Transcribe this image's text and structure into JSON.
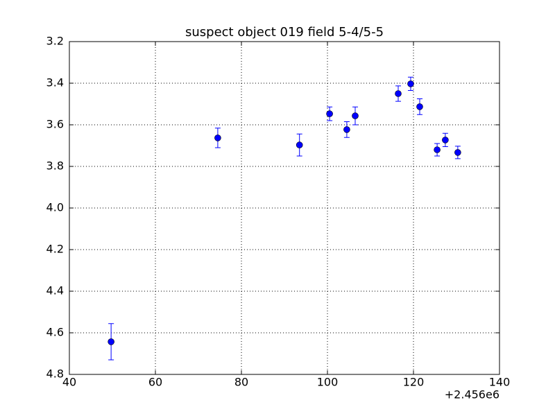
{
  "chart_data": {
    "type": "scatter",
    "title": "suspect object 019 field 5-4/5-5",
    "x_offset_label": "+2.456e6",
    "xlim": [
      40,
      140
    ],
    "xticks": [
      40,
      60,
      80,
      100,
      120,
      140
    ],
    "ylim": [
      4.8,
      3.2
    ],
    "yticks": [
      4.8,
      4.6,
      4.4,
      4.2,
      {
        "value": 4,
        "label": "4.0"
      },
      3.8,
      3.6,
      3.4,
      3.2
    ],
    "grid": true,
    "series": [
      {
        "color": "#0000ff",
        "x": [
          49.7,
          74.5,
          93.5,
          100.5,
          104.5,
          106.45,
          116.45,
          119.35,
          121.45,
          125.5,
          127.4,
          130.3
        ],
        "values": [
          4.643,
          3.663,
          3.697,
          3.547,
          3.623,
          3.557,
          3.45,
          3.403,
          3.513,
          3.72,
          3.673,
          3.733
        ],
        "errors": [
          0.087,
          0.047,
          0.053,
          0.033,
          0.038,
          0.043,
          0.037,
          0.032,
          0.038,
          0.03,
          0.032,
          0.03
        ]
      }
    ]
  }
}
